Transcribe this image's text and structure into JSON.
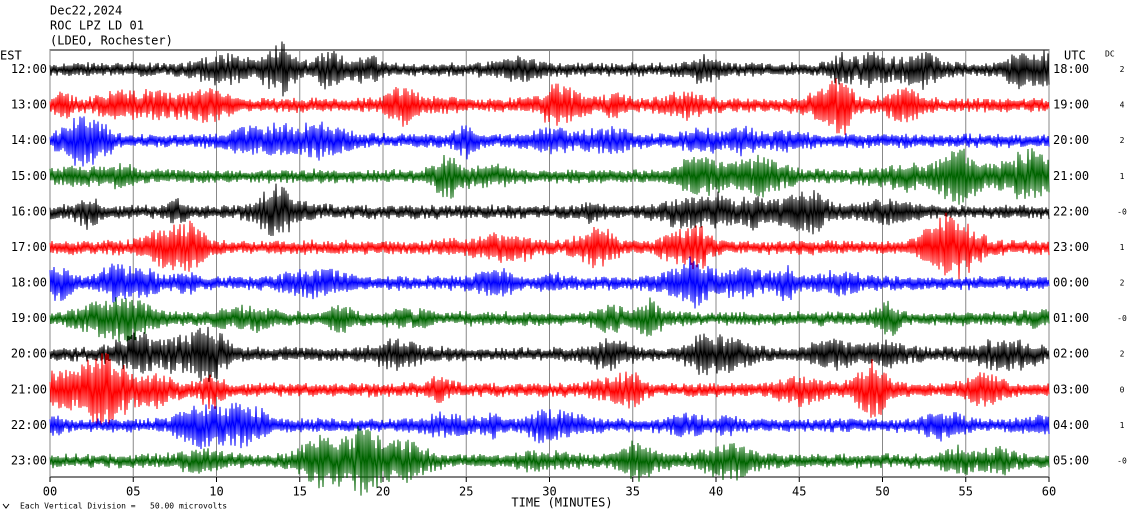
{
  "chart_data": {
    "type": "helicorder",
    "title": "Dec22,2024",
    "subtitle": "ROC LPZ LD 01",
    "location": "(LDEO, Rochester)",
    "left_axis_label": "EST",
    "right_axis_label": "UTC",
    "dc_label": "DC",
    "x_label": "TIME (MINUTES)",
    "footnote": "Each Vertical Division =   50.00 microvolts",
    "xlim": [
      0,
      60
    ],
    "xticks": [
      {
        "value": 0,
        "label": "00"
      },
      {
        "value": 5,
        "label": "05"
      },
      10,
      15,
      20,
      25,
      30,
      35,
      40,
      45,
      50,
      55,
      60
    ],
    "grid": true,
    "rows": [
      {
        "est": "12:00",
        "utc": "18:00",
        "dc": "2",
        "color": "#000000"
      },
      {
        "est": "13:00",
        "utc": "19:00",
        "dc": "4",
        "color": "#ff0000"
      },
      {
        "est": "14:00",
        "utc": "20:00",
        "dc": "2",
        "color": "#0000ff"
      },
      {
        "est": "15:00",
        "utc": "21:00",
        "dc": "1",
        "color": "#006400"
      },
      {
        "est": "16:00",
        "utc": "22:00",
        "dc": "-0",
        "color": "#000000"
      },
      {
        "est": "17:00",
        "utc": "23:00",
        "dc": "1",
        "color": "#ff0000"
      },
      {
        "est": "18:00",
        "utc": "00:00",
        "dc": "2",
        "color": "#0000ff"
      },
      {
        "est": "19:00",
        "utc": "01:00",
        "dc": "-0",
        "color": "#006400"
      },
      {
        "est": "20:00",
        "utc": "02:00",
        "dc": "2",
        "color": "#000000"
      },
      {
        "est": "21:00",
        "utc": "03:00",
        "dc": "0",
        "color": "#ff0000"
      },
      {
        "est": "22:00",
        "utc": "04:00",
        "dc": "1",
        "color": "#0000ff"
      },
      {
        "est": "23:00",
        "utc": "05:00",
        "dc": "-0",
        "color": "#006400"
      }
    ]
  }
}
